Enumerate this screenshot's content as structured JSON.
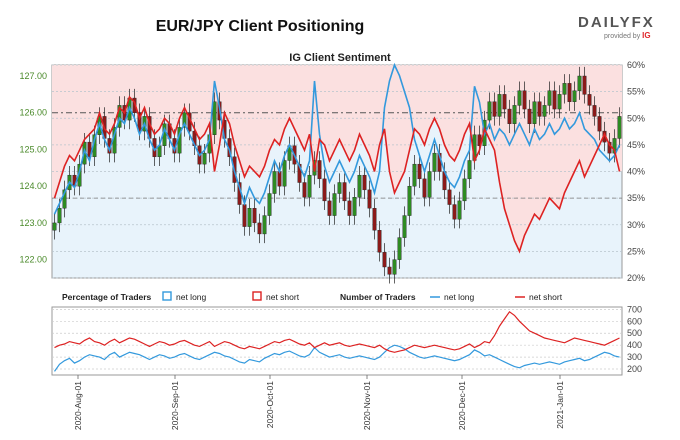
{
  "header": {
    "title": "EUR/JPY Client Positioning",
    "brand": "DAILYFX",
    "brand_sub": "provided by",
    "brand_ig": "IG"
  },
  "chart_data": [
    {
      "type": "line",
      "title": "IG Client Sentiment",
      "x_labels": [
        "2020-Aug-01",
        "2020-Sep-01",
        "2020-Oct-01",
        "2020-Nov-01",
        "2020-Dec-01",
        "2021-Jan-01"
      ],
      "y_left": {
        "ticks": [
          122.0,
          123.0,
          124.0,
          125.0,
          126.0,
          127.0
        ],
        "range": [
          121.5,
          127.3
        ]
      },
      "y_right": {
        "ticks": [
          "20%",
          "25%",
          "30%",
          "35%",
          "40%",
          "45%",
          "50%",
          "55%",
          "60%"
        ],
        "range": [
          20,
          60
        ]
      },
      "reference_line_left": 126.0,
      "price_candles_close": [
        123.0,
        123.4,
        123.9,
        124.3,
        124.0,
        124.6,
        125.2,
        124.8,
        125.4,
        125.9,
        125.3,
        124.9,
        125.6,
        126.2,
        125.8,
        126.4,
        126.0,
        125.5,
        125.9,
        125.3,
        124.8,
        125.1,
        125.7,
        125.3,
        124.9,
        125.6,
        126.0,
        125.5,
        125.1,
        124.6,
        124.9,
        125.4,
        126.3,
        125.8,
        125.3,
        124.8,
        124.1,
        123.5,
        122.9,
        123.4,
        123.0,
        122.7,
        123.2,
        123.8,
        124.4,
        124.0,
        124.7,
        125.1,
        124.6,
        124.1,
        123.7,
        124.3,
        124.7,
        124.2,
        123.6,
        123.2,
        123.8,
        124.1,
        123.6,
        123.2,
        123.7,
        124.3,
        123.9,
        123.4,
        122.8,
        122.2,
        121.8,
        121.6,
        122.0,
        122.6,
        123.2,
        124.0,
        124.6,
        124.2,
        123.7,
        124.4,
        124.9,
        124.4,
        123.9,
        123.5,
        123.1,
        123.6,
        124.2,
        124.7,
        125.4,
        125.1,
        125.8,
        126.3,
        125.9,
        126.5,
        126.1,
        125.7,
        126.2,
        126.6,
        126.1,
        125.7,
        126.3,
        125.9,
        126.2,
        126.6,
        126.1,
        126.5,
        126.8,
        126.3,
        126.6,
        127.0,
        126.5,
        126.2,
        125.9,
        125.5,
        125.2,
        124.9,
        125.3,
        125.9
      ],
      "series": [
        {
          "name": "net long",
          "color": "#3399dd",
          "values": [
            32,
            34,
            36,
            38,
            37,
            40,
            44,
            42,
            46,
            49,
            46,
            44,
            47,
            50,
            49,
            52,
            50,
            47,
            49,
            46,
            44,
            45,
            48,
            46,
            44,
            47,
            49,
            47,
            45,
            43,
            44,
            46,
            57,
            52,
            46,
            44,
            40,
            37,
            34,
            37,
            35,
            34,
            36,
            39,
            42,
            40,
            43,
            45,
            43,
            41,
            39,
            42,
            57,
            47,
            41,
            38,
            40,
            42,
            40,
            38,
            40,
            43,
            41,
            39,
            36,
            40,
            52,
            57,
            60,
            58,
            55,
            52,
            46,
            43,
            40,
            43,
            46,
            43,
            40,
            38,
            37,
            39,
            42,
            44,
            56,
            53,
            47,
            49,
            46,
            48,
            47,
            45,
            47,
            49,
            47,
            45,
            48,
            46,
            47,
            49,
            47,
            48,
            50,
            48,
            49,
            51,
            48,
            47,
            46,
            44,
            43,
            42,
            43,
            45
          ]
        },
        {
          "name": "net short",
          "color": "#dd2222",
          "values": [
            35,
            38,
            41,
            43,
            42,
            44,
            46,
            47,
            48,
            51,
            48,
            47,
            49,
            52,
            51,
            54,
            53,
            50,
            52,
            49,
            47,
            48,
            50,
            49,
            47,
            50,
            52,
            50,
            48,
            46,
            47,
            49,
            40,
            45,
            51,
            49,
            45,
            42,
            39,
            41,
            40,
            39,
            41,
            44,
            46,
            45,
            48,
            50,
            48,
            46,
            44,
            47,
            40,
            46,
            45,
            42,
            44,
            46,
            44,
            42,
            44,
            47,
            45,
            43,
            40,
            45,
            48,
            40,
            36,
            38,
            40,
            44,
            48,
            47,
            45,
            48,
            50,
            48,
            45,
            43,
            42,
            44,
            47,
            49,
            42,
            44,
            48,
            46,
            44,
            38,
            33,
            30,
            27,
            25,
            28,
            30,
            32,
            31,
            33,
            35,
            34,
            33,
            36,
            38,
            40,
            42,
            39,
            41,
            43,
            45,
            47,
            45,
            44,
            40
          ]
        }
      ]
    },
    {
      "type": "line",
      "title": "Percentage of Traders",
      "legend": [
        "net long",
        "net short"
      ],
      "title2": "Number of Traders",
      "legend2": [
        "net long",
        "net short"
      ],
      "y_right": {
        "ticks": [
          200,
          300,
          400,
          500,
          600,
          700
        ],
        "range": [
          150,
          720
        ]
      },
      "series": [
        {
          "name": "net long",
          "color": "#3399dd",
          "values": [
            180,
            240,
            270,
            290,
            250,
            270,
            300,
            320,
            310,
            300,
            280,
            320,
            340,
            300,
            320,
            340,
            330,
            320,
            300,
            280,
            300,
            320,
            310,
            290,
            300,
            320,
            330,
            310,
            290,
            280,
            300,
            320,
            340,
            330,
            310,
            300,
            280,
            260,
            250,
            280,
            270,
            260,
            290,
            310,
            330,
            320,
            340,
            350,
            330,
            310,
            300,
            320,
            380,
            340,
            320,
            300,
            310,
            320,
            300,
            290,
            300,
            310,
            300,
            290,
            280,
            300,
            340,
            380,
            400,
            390,
            370,
            340,
            320,
            300,
            290,
            300,
            310,
            300,
            290,
            280,
            270,
            280,
            300,
            320,
            360,
            340,
            310,
            320,
            300,
            280,
            260,
            240,
            220,
            210,
            230,
            240,
            250,
            240,
            250,
            260,
            250,
            240,
            260,
            270,
            280,
            290,
            270,
            280,
            300,
            320,
            340,
            330,
            310,
            300
          ]
        },
        {
          "name": "net short",
          "color": "#dd2222",
          "values": [
            380,
            400,
            410,
            430,
            420,
            410,
            440,
            460,
            430,
            420,
            400,
            430,
            450,
            420,
            440,
            460,
            450,
            430,
            410,
            390,
            410,
            430,
            420,
            400,
            410,
            430,
            440,
            420,
            400,
            390,
            410,
            430,
            390,
            410,
            430,
            420,
            400,
            380,
            370,
            390,
            380,
            370,
            390,
            410,
            430,
            420,
            440,
            450,
            430,
            410,
            400,
            420,
            380,
            400,
            420,
            400,
            410,
            420,
            400,
            390,
            400,
            410,
            400,
            390,
            380,
            400,
            370,
            350,
            340,
            350,
            360,
            380,
            400,
            390,
            380,
            390,
            400,
            390,
            380,
            370,
            360,
            370,
            390,
            410,
            380,
            400,
            430,
            420,
            480,
            560,
            620,
            680,
            650,
            600,
            560,
            520,
            500,
            480,
            460,
            450,
            440,
            430,
            420,
            440,
            460,
            450,
            440,
            430,
            420,
            410,
            400,
            420,
            440,
            460
          ]
        }
      ]
    }
  ]
}
